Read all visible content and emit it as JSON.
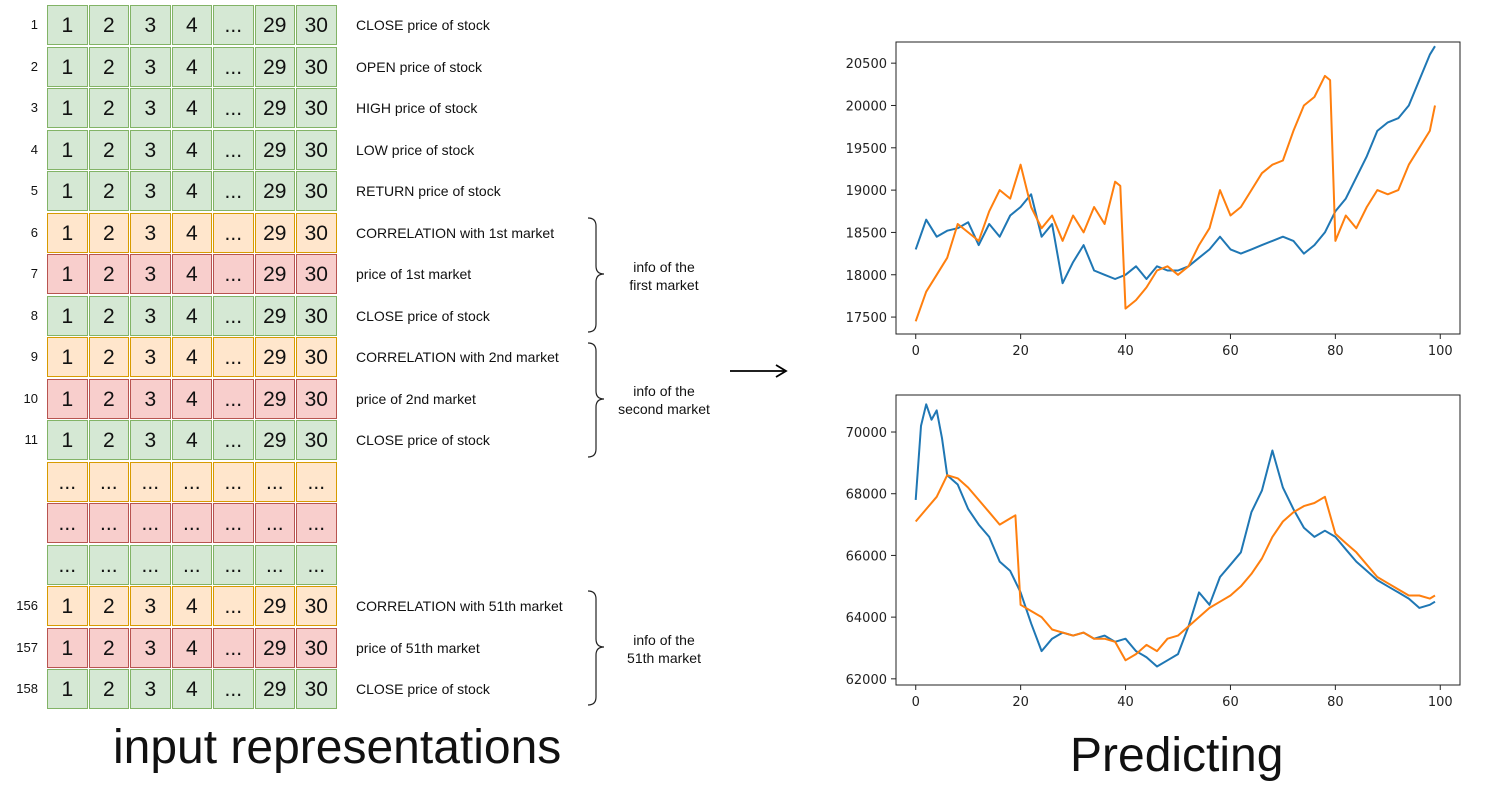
{
  "table": {
    "header_values": [
      "1",
      "2",
      "3",
      "4",
      "...",
      "29",
      "30"
    ],
    "ellipsis": "...",
    "rows": [
      {
        "num": "1",
        "color": "green",
        "label": "CLOSE price of stock"
      },
      {
        "num": "2",
        "color": "green",
        "label": "OPEN price of stock"
      },
      {
        "num": "3",
        "color": "green",
        "label": "HIGH price of stock"
      },
      {
        "num": "4",
        "color": "green",
        "label": "LOW price of stock"
      },
      {
        "num": "5",
        "color": "green",
        "label": "RETURN price of stock"
      },
      {
        "num": "6",
        "color": "orange",
        "label": "CORRELATION with 1st market"
      },
      {
        "num": "7",
        "color": "red",
        "label": "price of 1st market"
      },
      {
        "num": "8",
        "color": "green",
        "label": "CLOSE price of stock"
      },
      {
        "num": "9",
        "color": "orange",
        "label": "CORRELATION with 2nd market"
      },
      {
        "num": "10",
        "color": "red",
        "label": "price of 2nd market"
      },
      {
        "num": "11",
        "color": "green",
        "label": "CLOSE price of stock"
      },
      {
        "num": "",
        "color": "orange",
        "label": "",
        "ellipsis": true
      },
      {
        "num": "",
        "color": "red",
        "label": "",
        "ellipsis": true
      },
      {
        "num": "",
        "color": "green",
        "label": "",
        "ellipsis": true
      },
      {
        "num": "156",
        "color": "orange",
        "label": "CORRELATION with 51th market"
      },
      {
        "num": "157",
        "color": "red",
        "label": "price of 51th market"
      },
      {
        "num": "158",
        "color": "green",
        "label": "CLOSE price of stock"
      }
    ]
  },
  "groups": [
    {
      "line1": "info of the",
      "line2": "first market"
    },
    {
      "line1": "info of the",
      "line2": "second market"
    },
    {
      "line1": "info of the",
      "line2": "51th market"
    }
  ],
  "captions": {
    "left": "input representations",
    "right": "Predicting"
  },
  "colors": {
    "green_fill": "#d5e8d4",
    "orange_fill": "#ffe6cc",
    "red_fill": "#f8cecc",
    "series_blue": "#1f77b4",
    "series_orange": "#ff7f0e"
  },
  "chart_data": [
    {
      "type": "line",
      "xlim": [
        0,
        100
      ],
      "ylim": [
        17300,
        20750
      ],
      "xticks": [
        0,
        20,
        40,
        60,
        80,
        100
      ],
      "yticks": [
        17500,
        18000,
        18500,
        19000,
        19500,
        20000,
        20500
      ],
      "grid": false,
      "series": [
        {
          "color": "#1f77b4",
          "x": [
            0,
            2,
            4,
            6,
            8,
            10,
            12,
            14,
            16,
            18,
            20,
            22,
            24,
            26,
            28,
            30,
            32,
            34,
            36,
            38,
            40,
            42,
            44,
            46,
            48,
            50,
            52,
            54,
            56,
            58,
            60,
            62,
            64,
            66,
            68,
            70,
            72,
            74,
            76,
            78,
            80,
            82,
            84,
            86,
            88,
            90,
            92,
            94,
            96,
            98,
            99
          ],
          "y": [
            18300,
            18650,
            18450,
            18520,
            18550,
            18620,
            18350,
            18600,
            18450,
            18700,
            18800,
            18950,
            18450,
            18600,
            17900,
            18150,
            18350,
            18050,
            18000,
            17950,
            18000,
            18100,
            17950,
            18100,
            18050,
            18050,
            18100,
            18200,
            18300,
            18450,
            18300,
            18250,
            18300,
            18350,
            18400,
            18450,
            18400,
            18250,
            18350,
            18500,
            18750,
            18900,
            19150,
            19400,
            19700,
            19800,
            19850,
            20000,
            20300,
            20600,
            20700
          ]
        },
        {
          "color": "#ff7f0e",
          "x": [
            0,
            2,
            4,
            6,
            8,
            10,
            12,
            14,
            16,
            18,
            20,
            22,
            24,
            26,
            28,
            30,
            32,
            34,
            36,
            38,
            39,
            40,
            42,
            44,
            46,
            48,
            50,
            52,
            54,
            56,
            58,
            60,
            62,
            64,
            66,
            68,
            70,
            72,
            74,
            76,
            78,
            79,
            80,
            82,
            84,
            86,
            88,
            90,
            92,
            94,
            96,
            98,
            99
          ],
          "y": [
            17450,
            17800,
            18000,
            18200,
            18600,
            18500,
            18400,
            18750,
            19000,
            18900,
            19300,
            18800,
            18550,
            18700,
            18400,
            18700,
            18500,
            18800,
            18600,
            19100,
            19050,
            17600,
            17700,
            17850,
            18050,
            18100,
            18000,
            18100,
            18350,
            18550,
            19000,
            18700,
            18800,
            19000,
            19200,
            19300,
            19350,
            19700,
            20000,
            20100,
            20350,
            20300,
            18400,
            18700,
            18550,
            18800,
            19000,
            18950,
            19000,
            19300,
            19500,
            19700,
            20000
          ]
        }
      ]
    },
    {
      "type": "line",
      "xlim": [
        0,
        100
      ],
      "ylim": [
        61800,
        71200
      ],
      "xticks": [
        0,
        20,
        40,
        60,
        80,
        100
      ],
      "yticks": [
        62000,
        64000,
        66000,
        68000,
        70000
      ],
      "grid": false,
      "series": [
        {
          "color": "#1f77b4",
          "x": [
            0,
            1,
            2,
            3,
            4,
            5,
            6,
            8,
            10,
            12,
            14,
            16,
            18,
            20,
            22,
            24,
            26,
            28,
            30,
            32,
            34,
            36,
            38,
            40,
            42,
            44,
            46,
            48,
            50,
            52,
            54,
            56,
            58,
            60,
            62,
            64,
            66,
            68,
            70,
            72,
            74,
            76,
            78,
            80,
            82,
            84,
            86,
            88,
            90,
            92,
            94,
            96,
            98,
            99
          ],
          "y": [
            67800,
            70200,
            70900,
            70400,
            70700,
            69800,
            68600,
            68300,
            67500,
            67000,
            66600,
            65800,
            65500,
            64800,
            63800,
            62900,
            63300,
            63500,
            63400,
            63500,
            63300,
            63400,
            63200,
            63300,
            62900,
            62700,
            62400,
            62600,
            62800,
            63700,
            64800,
            64400,
            65300,
            65700,
            66100,
            67400,
            68100,
            69400,
            68200,
            67500,
            66900,
            66600,
            66800,
            66600,
            66200,
            65800,
            65500,
            65200,
            65000,
            64800,
            64600,
            64300,
            64400,
            64500
          ]
        },
        {
          "color": "#ff7f0e",
          "x": [
            0,
            2,
            4,
            6,
            8,
            10,
            12,
            14,
            16,
            18,
            19,
            20,
            22,
            24,
            26,
            28,
            30,
            32,
            34,
            36,
            38,
            40,
            42,
            44,
            46,
            48,
            50,
            52,
            54,
            56,
            58,
            60,
            62,
            64,
            66,
            68,
            70,
            72,
            74,
            76,
            78,
            80,
            82,
            84,
            86,
            88,
            90,
            92,
            94,
            96,
            98,
            99
          ],
          "y": [
            67100,
            67500,
            67900,
            68600,
            68500,
            68200,
            67800,
            67400,
            67000,
            67200,
            67300,
            64400,
            64200,
            64000,
            63600,
            63500,
            63400,
            63500,
            63300,
            63300,
            63200,
            62600,
            62800,
            63100,
            62900,
            63300,
            63400,
            63700,
            64000,
            64300,
            64500,
            64700,
            65000,
            65400,
            65900,
            66600,
            67100,
            67400,
            67600,
            67700,
            67900,
            66700,
            66400,
            66100,
            65700,
            65300,
            65100,
            64900,
            64700,
            64700,
            64600,
            64700
          ]
        }
      ]
    }
  ]
}
